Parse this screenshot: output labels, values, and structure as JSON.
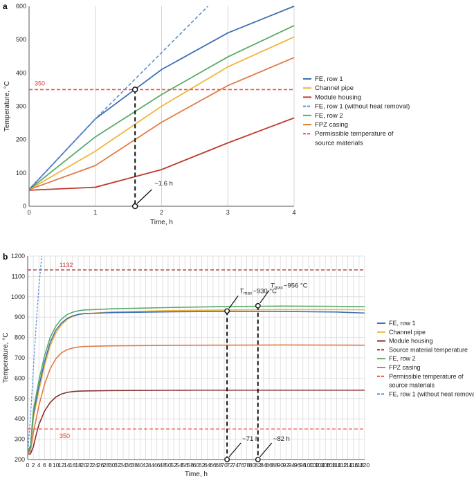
{
  "chart_data": [
    {
      "panel": "a",
      "type": "line",
      "xlabel": "Time, h",
      "ylabel": "Temperature, °C",
      "xlim": [
        0,
        4
      ],
      "ylim": [
        0,
        600
      ],
      "xticks": [
        0,
        1,
        2,
        3,
        4
      ],
      "yticks": [
        0,
        100,
        200,
        300,
        400,
        500,
        600
      ],
      "grid": "vertical",
      "legend_position": "right",
      "series": [
        {
          "name": "FE, row 1",
          "color": "#3e6fb4",
          "dash": "solid",
          "x": [
            0,
            1,
            2,
            3,
            4
          ],
          "y": [
            50,
            262,
            410,
            520,
            600
          ]
        },
        {
          "name": "Channel pipe",
          "color": "#f2b43c",
          "dash": "solid",
          "x": [
            0,
            1,
            2,
            3,
            4
          ],
          "y": [
            50,
            165,
            300,
            418,
            508
          ]
        },
        {
          "name": "Module housing",
          "color": "#c0392b",
          "dash": "solid",
          "x": [
            0,
            1,
            2,
            3,
            4
          ],
          "y": [
            48,
            57,
            110,
            190,
            265
          ]
        },
        {
          "name": "FE, row 1 (without heat removal)",
          "color": "#5b8fd6",
          "dash": "dashed",
          "x": [
            0,
            1,
            2.7
          ],
          "y": [
            50,
            262,
            600
          ]
        },
        {
          "name": "FE, row 2",
          "color": "#5aaa6a",
          "dash": "solid",
          "x": [
            0,
            1,
            2,
            3,
            4
          ],
          "y": [
            50,
            208,
            335,
            448,
            542
          ]
        },
        {
          "name": "FPZ casing",
          "color": "#e07a45",
          "dash": "solid",
          "x": [
            0,
            1,
            2,
            3,
            4
          ],
          "y": [
            50,
            122,
            252,
            362,
            446
          ]
        },
        {
          "name": "Permissible temperature of source materials",
          "color": "#ef5040",
          "dash": "dashed",
          "x": [
            0,
            4
          ],
          "y": [
            350,
            350
          ]
        }
      ],
      "reference_lines": [
        {
          "value": 350,
          "label": "350",
          "color": "#e03a3a"
        }
      ],
      "annotations": [
        {
          "text": "~1.6 h",
          "x": 1.6,
          "y_top": 350,
          "y_bottom": 0
        }
      ]
    },
    {
      "panel": "b",
      "type": "line",
      "xlabel": "Time, h",
      "ylabel": "Temperature, °C",
      "xlim": [
        0,
        120
      ],
      "ylim": [
        200,
        1200
      ],
      "xticks": [
        0,
        2,
        4,
        6,
        8,
        10,
        12,
        14,
        16,
        18,
        20,
        22,
        24,
        26,
        28,
        30,
        32,
        34,
        36,
        38,
        40,
        42,
        44,
        46,
        48,
        50,
        52,
        54,
        56,
        58,
        60,
        62,
        64,
        66,
        68,
        70,
        72,
        74,
        76,
        78,
        80,
        82,
        84,
        86,
        88,
        90,
        92,
        94,
        96,
        98,
        100,
        102,
        104,
        106,
        108,
        110,
        112,
        114,
        116,
        118,
        120
      ],
      "yticks": [
        200,
        300,
        400,
        500,
        600,
        700,
        800,
        900,
        1000,
        1100,
        1200
      ],
      "grid": "both",
      "legend_position": "right",
      "series": [
        {
          "name": "FE, row 1",
          "color": "#3e6fb4",
          "dash": "solid",
          "x": [
            0,
            1,
            2,
            4,
            6,
            8,
            10,
            12,
            14,
            16,
            18,
            20,
            30,
            50,
            70,
            90,
            110,
            120
          ],
          "y": [
            230,
            260,
            420,
            560,
            680,
            775,
            835,
            870,
            893,
            906,
            913,
            917,
            922,
            926,
            928,
            928,
            925,
            920
          ]
        },
        {
          "name": "Channel pipe",
          "color": "#f2b43c",
          "dash": "solid",
          "x": [
            0,
            1,
            2,
            4,
            6,
            8,
            10,
            12,
            14,
            16,
            18,
            20,
            30,
            50,
            70,
            90,
            110,
            120
          ],
          "y": [
            225,
            250,
            400,
            540,
            660,
            758,
            822,
            862,
            888,
            903,
            912,
            917,
            925,
            932,
            935,
            937,
            937,
            936
          ]
        },
        {
          "name": "Module housing",
          "color": "#8b2f2f",
          "dash": "solid",
          "x": [
            0,
            1,
            2,
            3,
            4,
            6,
            8,
            10,
            12,
            14,
            16,
            18,
            20,
            30,
            60,
            90,
            120
          ],
          "y": [
            225,
            228,
            262,
            320,
            372,
            438,
            480,
            507,
            522,
            530,
            534,
            536,
            537,
            539,
            541,
            541,
            541
          ]
        },
        {
          "name": "Source material temperature",
          "color": "#9b2b2b",
          "dash": "dashed",
          "x": [
            0,
            120
          ],
          "y": [
            1132,
            1132
          ]
        },
        {
          "name": "FE, row 2",
          "color": "#5aaa6a",
          "dash": "solid",
          "x": [
            0,
            1,
            2,
            4,
            6,
            8,
            10,
            12,
            14,
            16,
            18,
            20,
            30,
            50,
            70,
            90,
            110,
            120
          ],
          "y": [
            235,
            270,
            440,
            590,
            710,
            800,
            855,
            890,
            912,
            924,
            931,
            935,
            941,
            947,
            952,
            954,
            953,
            951
          ]
        },
        {
          "name": "FPZ casing",
          "color": "#e07a45",
          "dash": "solid",
          "x": [
            0,
            1,
            2,
            4,
            6,
            8,
            10,
            12,
            14,
            16,
            18,
            20,
            30,
            60,
            90,
            120
          ],
          "y": [
            225,
            242,
            330,
            465,
            570,
            645,
            695,
            724,
            740,
            748,
            753,
            756,
            759,
            762,
            763,
            762
          ]
        },
        {
          "name": "Permissible temperature of source materials",
          "color": "#ef5040",
          "dash": "dashed",
          "x": [
            0,
            120
          ],
          "y": [
            350,
            350
          ]
        },
        {
          "name": "FE, row 1 (without heat removal)",
          "color": "#5b8fd6",
          "dash": "dashed",
          "x": [
            0,
            1,
            2,
            3,
            4,
            5
          ],
          "y": [
            230,
            410,
            640,
            860,
            1050,
            1200
          ]
        }
      ],
      "reference_lines": [
        {
          "value": 1132,
          "label": "1132",
          "color": "#b33030"
        },
        {
          "value": 350,
          "label": "350",
          "color": "#e03a3a"
        }
      ],
      "annotations": [
        {
          "text": "~71 h",
          "x": 71,
          "y_top": 930,
          "y_bottom": 200,
          "tmax_prefix": "T",
          "tmax_sub": "max",
          "tmax_value": "~930 °C"
        },
        {
          "text": "~82 h",
          "x": 82,
          "y_top": 956,
          "y_bottom": 200,
          "tmax_prefix": "T",
          "tmax_sub": "max",
          "tmax_value": "~956 °C"
        }
      ]
    }
  ],
  "legend_a": [
    "FE, row 1",
    "Channel pipe",
    "Module housing",
    "FE, row 1 (without heat removal)",
    "FE, row 2",
    "FPZ casing",
    "Permissible temperature of",
    "source materials"
  ],
  "legend_b": [
    "FE, row 1",
    "Channel pipe",
    "Module housing",
    "Source material temperature",
    "FE, row 2",
    "FPZ casing",
    "Permissible temperature of",
    "source materials",
    "FE, row 1 (without heat removal)"
  ]
}
